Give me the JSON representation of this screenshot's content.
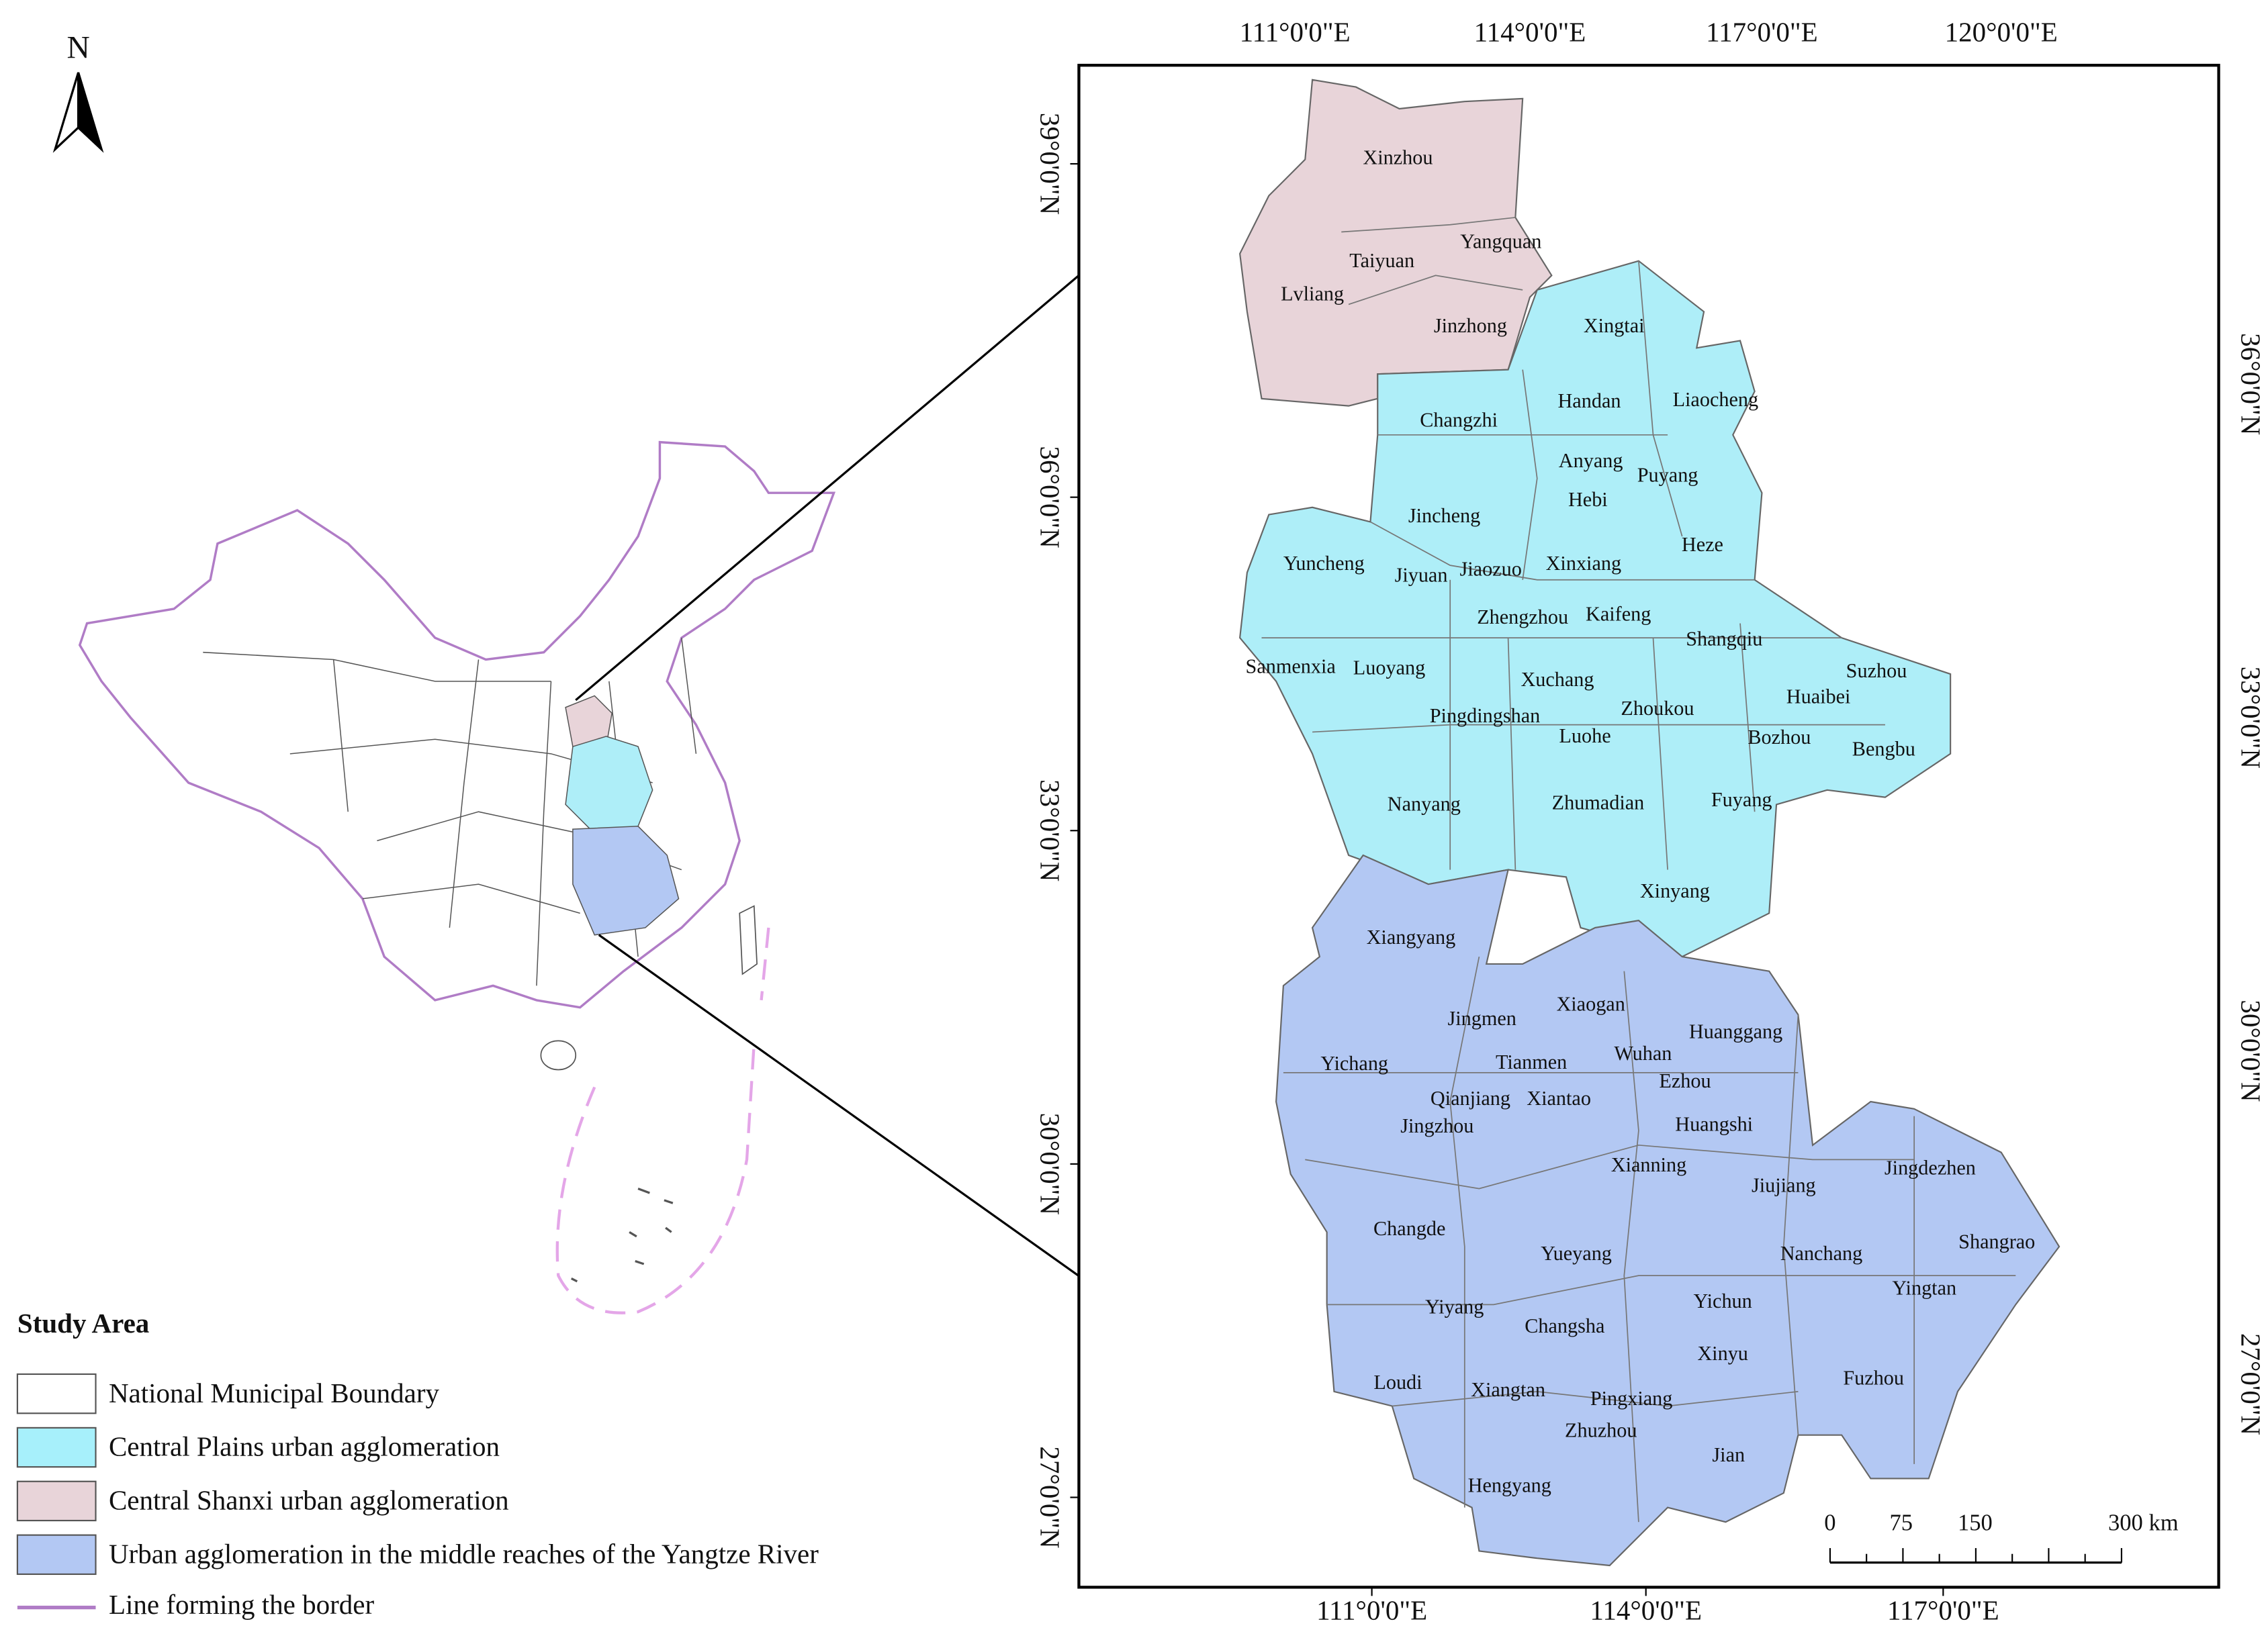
{
  "north": "N",
  "graticule": {
    "top": [
      "111°0'0\"E",
      "114°0'0\"E",
      "117°0'0\"E",
      "120°0'0\"E"
    ],
    "bottom": [
      "111°0'0\"E",
      "114°0'0\"E",
      "117°0'0\"E"
    ],
    "left": [
      "39°0'0\"N",
      "36°0'0\"N",
      "33°0'0\"N",
      "30°0'0\"N",
      "27°0'0\"N"
    ],
    "right": [
      "36°0'0\"N",
      "33°0'0\"N",
      "30°0'0\"N",
      "27°0'0\"N"
    ]
  },
  "cities": [
    "Xinzhou",
    "Yangquan",
    "Taiyuan",
    "Lvliang",
    "Jinzhong",
    "Xingtai",
    "Handan",
    "Liaocheng",
    "Changzhi",
    "Anyang",
    "Puyang",
    "Hebi",
    "Jincheng",
    "Heze",
    "Yuncheng",
    "Jiyuan",
    "Jiaozuo",
    "Xinxiang",
    "Zhengzhou",
    "Kaifeng",
    "Shangqiu",
    "Sanmenxia",
    "Luoyang",
    "Xuchang",
    "Suzhou",
    "Huaibei",
    "Zhoukou",
    "Pingdingshan",
    "Luohe",
    "Bozhou",
    "Bengbu",
    "Nanyang",
    "Zhumadian",
    "Fuyang",
    "Xinyang",
    "Xiangyang",
    "Xiaogan",
    "Jingmen",
    "Huanggang",
    "Wuhan",
    "Yichang",
    "Tianmen",
    "Ezhou",
    "Qianjiang",
    "Xiantao",
    "Jingzhou",
    "Huangshi",
    "Xianning",
    "Jingdezhen",
    "Jiujiang",
    "Changde",
    "Shangrao",
    "Nanchang",
    "Yueyang",
    "Yingtan",
    "Yichun",
    "Yiyang",
    "Changsha",
    "Xinyu",
    "Fuzhou",
    "Loudi",
    "Xiangtan",
    "Pingxiang",
    "Zhuzhou",
    "Jian",
    "Hengyang"
  ],
  "legend": {
    "title": "Study Area",
    "items": [
      "National Municipal Boundary",
      "Central Plains urban agglomeration",
      "Central Shanxi urban agglomeration",
      "Urban agglomeration in the middle reaches of the Yangtze River",
      "Line forming the border"
    ]
  },
  "scale_bar": [
    "0",
    "75",
    "150",
    "300 km"
  ]
}
